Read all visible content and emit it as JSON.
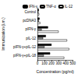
{
  "chart_data": {
    "type": "bar",
    "orientation": "horizontal",
    "categories": [
      "Control",
      "pcDNA3",
      "pIFN-γ",
      "pIL-12",
      "pIFN-γ+pIL-12",
      "pIFN-γ+pIL-18"
    ],
    "series": [
      {
        "name": "IFN-γ",
        "color": "#000000",
        "values": [
          20,
          30,
          150,
          120,
          200,
          180
        ]
      },
      {
        "name": "TNF-α",
        "color": "#8c8c8c",
        "values": [
          15,
          20,
          60,
          80,
          100,
          90
        ]
      },
      {
        "name": "IL-12",
        "color": "#ffffff",
        "values": [
          25,
          40,
          300,
          420,
          450,
          380
        ]
      }
    ],
    "xlabel": "Concentration (pg/ml)",
    "ylabel": "Immunization (i.m.)",
    "xlim": [
      0,
      500
    ],
    "xticks": [
      0,
      100,
      200,
      300,
      400,
      500
    ],
    "grid": false,
    "legend": "top"
  }
}
